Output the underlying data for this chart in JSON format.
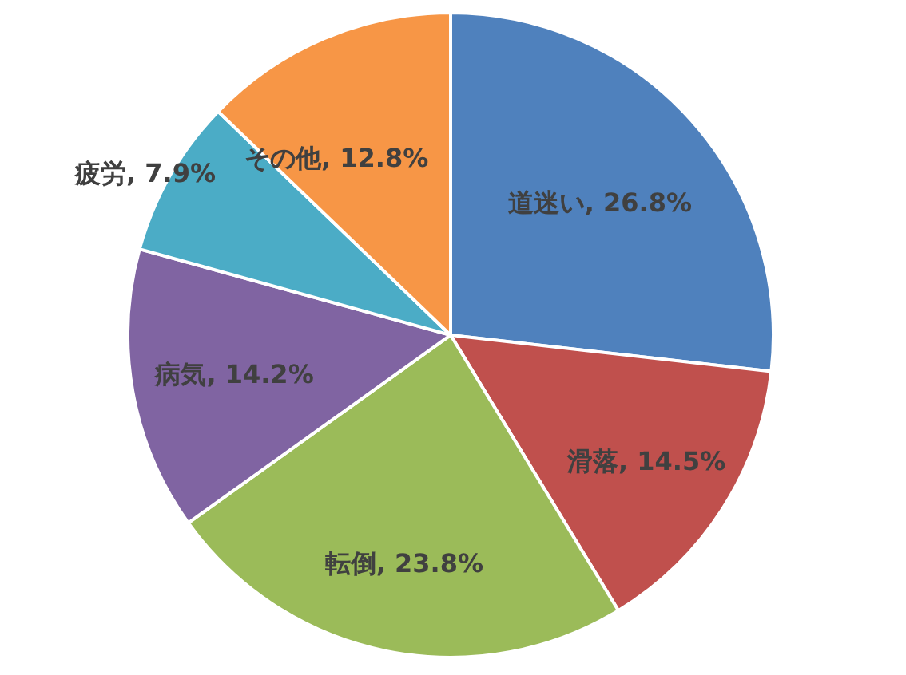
{
  "chart_data": {
    "type": "pie",
    "categories": [
      "道迷い",
      "滑落",
      "転倒",
      "病気",
      "疲労",
      "その他"
    ],
    "values": [
      26.8,
      14.5,
      23.8,
      14.2,
      7.9,
      12.8
    ],
    "value_labels": [
      "26.8%",
      "14.5%",
      "23.8%",
      "14.2%",
      "7.9%",
      "12.8%"
    ],
    "colors": [
      "#4f81bd",
      "#c0504d",
      "#9bbb59",
      "#8064a2",
      "#4bacc6",
      "#f79646"
    ],
    "legend": false
  }
}
